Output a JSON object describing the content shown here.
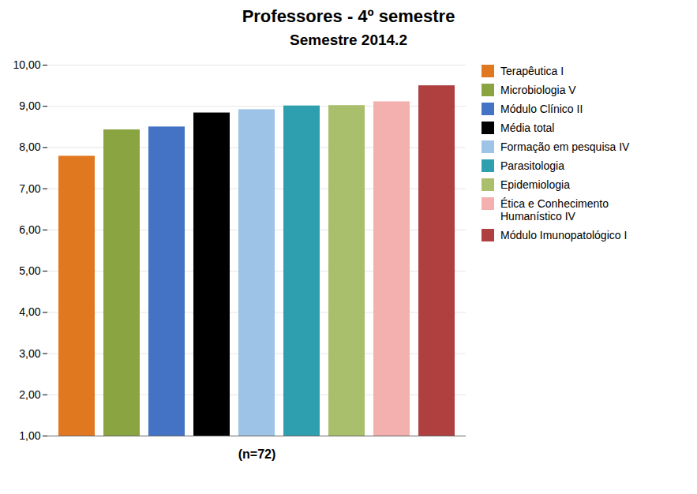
{
  "chart_data": {
    "type": "bar",
    "title": "Professores - 4º semestre",
    "subtitle": "Semestre 2014.2",
    "annotation": "(n=72)",
    "categories": [
      "Terapêutica I",
      "Microbiologia V",
      "Módulo Clínico II",
      "Média total",
      "Formação em pesquisa IV",
      "Parasitologia",
      "Epidemiologia",
      "Ética e Conhecimento\nHumanístico IV",
      "Módulo Imunopatológico I"
    ],
    "values": [
      7.79,
      8.43,
      8.5,
      8.84,
      8.92,
      9.01,
      9.02,
      9.11,
      9.5
    ],
    "colors": [
      "#E07820",
      "#8BA442",
      "#4472C4",
      "#000000",
      "#9DC3E6",
      "#2E9FAF",
      "#AABF6C",
      "#F4AFAF",
      "#B04040"
    ],
    "ylim": [
      1.0,
      10.0
    ],
    "yticks": [
      {
        "value": 1.0,
        "label": "1,00"
      },
      {
        "value": 2.0,
        "label": "2,00"
      },
      {
        "value": 3.0,
        "label": "3,00"
      },
      {
        "value": 4.0,
        "label": "4,00"
      },
      {
        "value": 5.0,
        "label": "5,00"
      },
      {
        "value": 6.0,
        "label": "6,00"
      },
      {
        "value": 7.0,
        "label": "7,00"
      },
      {
        "value": 8.0,
        "label": "8,00"
      },
      {
        "value": 9.0,
        "label": "9,00"
      },
      {
        "value": 10.0,
        "label": "10,00"
      }
    ],
    "grid": true,
    "legend": "right",
    "tick_labels": "y"
  }
}
